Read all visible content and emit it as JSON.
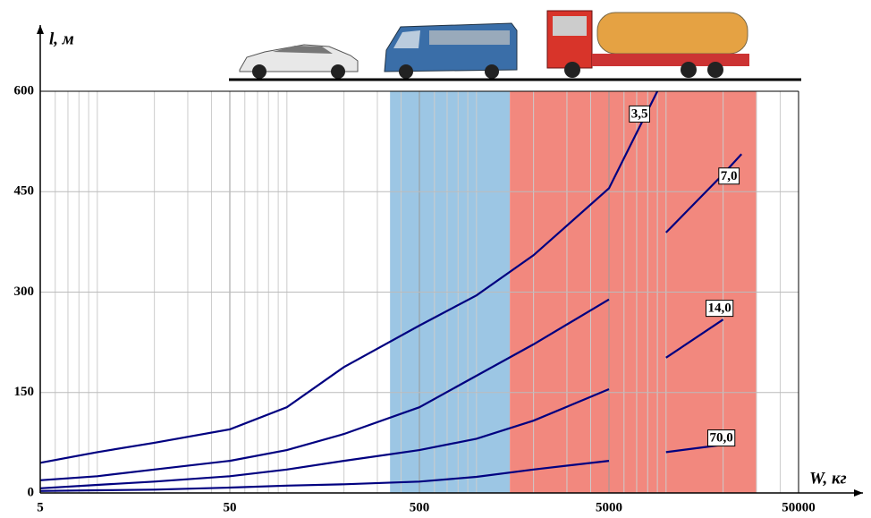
{
  "chart_data": {
    "type": "line",
    "xlabel": "W, кг",
    "ylabel": "l, м",
    "log_x": true,
    "xlim": [
      5,
      50000
    ],
    "ylim": [
      0,
      600
    ],
    "xticks": [
      5,
      50,
      500,
      5000,
      50000
    ],
    "yticks": [
      0,
      150,
      300,
      450,
      600
    ],
    "grid": true,
    "regions": [
      {
        "from": 350,
        "to": 1500,
        "color": "#9cc6e4"
      },
      {
        "from": 1500,
        "to": 30000,
        "color": "#f2887e"
      }
    ],
    "x": [
      5,
      10,
      20,
      50,
      100,
      200,
      500,
      1000,
      2000,
      5000,
      9000,
      10000,
      20000,
      25000
    ],
    "series": [
      {
        "name": "3,5",
        "color": "#000080",
        "values": [
          45,
          61,
          75,
          95,
          128,
          188,
          250,
          295,
          355,
          455,
          600,
          null,
          null,
          null
        ]
      },
      {
        "name": "7,0",
        "color": "#000080",
        "values": [
          19,
          25,
          35,
          48,
          64,
          88,
          128,
          175,
          222,
          289,
          null,
          389,
          476,
          506
        ]
      },
      {
        "name": "14,0",
        "color": "#000080",
        "values": [
          7,
          12,
          17,
          25,
          35,
          48,
          64,
          81,
          108,
          155,
          null,
          202,
          259,
          null
        ]
      },
      {
        "name": "70,0",
        "color": "#000080",
        "values": [
          3,
          4,
          5,
          8,
          11,
          13,
          17,
          24,
          35,
          48,
          null,
          61,
          72,
          null
        ]
      }
    ]
  }
}
